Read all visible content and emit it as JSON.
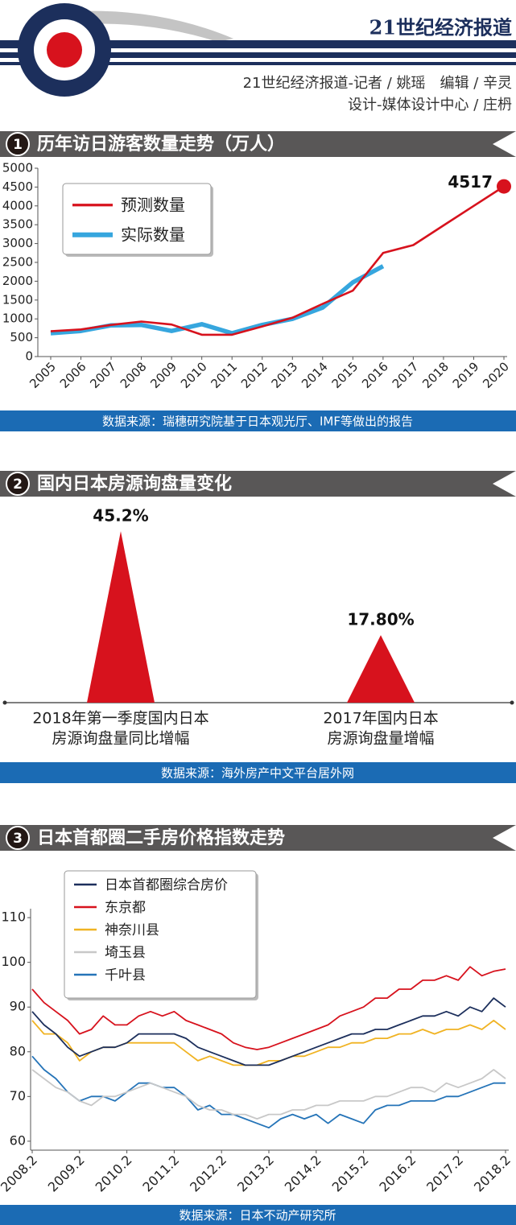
{
  "header": {
    "title": "21世纪经济报道",
    "credits": [
      "21世纪经济报道-记者 / 姚瑶　编辑 / 辛灵",
      "设计-媒体设计中心 / 庄枬"
    ]
  },
  "chart_data": [
    {
      "type": "line",
      "badge": "1",
      "title": "历年访日游客数量走势（万人）",
      "x": [
        2005,
        2006,
        2007,
        2008,
        2009,
        2010,
        2011,
        2012,
        2013,
        2014,
        2015,
        2016,
        2017,
        2018,
        2019,
        2020
      ],
      "xlim": [
        2005,
        2020
      ],
      "xticks": [
        2005,
        2006,
        2007,
        2008,
        2009,
        2010,
        2011,
        2012,
        2013,
        2014,
        2015,
        2016,
        2017,
        2018,
        2019,
        2020
      ],
      "ylim": [
        0,
        5000
      ],
      "yticks": [
        0,
        500,
        1000,
        1500,
        2000,
        2500,
        3000,
        3500,
        4000,
        4500,
        5000
      ],
      "legend": "upper left",
      "series": [
        {
          "name": "预测数量",
          "color": "#d7121d",
          "end_marker": true,
          "values": [
            670,
            720,
            840,
            930,
            850,
            580,
            580,
            800,
            1030,
            1400,
            1750,
            2750,
            2960,
            3480,
            4000,
            4517
          ]
        },
        {
          "name": "实际数量",
          "color": "#36a6de",
          "values": [
            620,
            680,
            830,
            840,
            680,
            860,
            620,
            840,
            1000,
            1300,
            1970,
            2400,
            null,
            null,
            null,
            null
          ]
        }
      ],
      "source": "数据来源：瑞穗研究院基于日本观光厅、IMF等做出的报告"
    },
    {
      "type": "triangle",
      "badge": "2",
      "title": "国内日本房源询盘量变化",
      "categories": [
        [
          "2018年第一季度国内日本",
          "房源询盘量同比增幅"
        ],
        [
          "2017年国内日本",
          "房源询盘量增幅"
        ]
      ],
      "values": [
        45.2,
        17.8
      ],
      "value_labels": [
        "45.2%",
        "17.80%"
      ],
      "color": "#d7121d",
      "source": "数据来源：海外房产中文平台居外网"
    },
    {
      "type": "line",
      "badge": "3",
      "title": "日本首都圈二手房价格指数走势",
      "x": [
        "2008.2",
        "2008.5",
        "2008.8",
        "2008.11",
        "2009.2",
        "2009.5",
        "2009.8",
        "2009.11",
        "2010.2",
        "2010.5",
        "2010.8",
        "2010.11",
        "2011.2",
        "2011.5",
        "2011.8",
        "2011.11",
        "2012.2",
        "2012.5",
        "2012.8",
        "2012.11",
        "2013.2",
        "2013.5",
        "2013.8",
        "2013.11",
        "2014.2",
        "2014.5",
        "2014.8",
        "2014.11",
        "2015.2",
        "2015.5",
        "2015.8",
        "2015.11",
        "2016.2",
        "2016.5",
        "2016.8",
        "2016.11",
        "2017.2",
        "2017.5",
        "2017.8",
        "2017.11",
        "2018.2"
      ],
      "xlim": [
        "2008.2",
        "2018.2"
      ],
      "xticks": [
        "2008.2",
        "2009.2",
        "2010.2",
        "2011.2",
        "2012.2",
        "2013.2",
        "2014.2",
        "2015.2",
        "2016.2",
        "2017.2",
        "2018.2"
      ],
      "ylim": [
        58,
        112
      ],
      "yticks": [
        60,
        70,
        80,
        90,
        100,
        110
      ],
      "legend": "upper left",
      "series": [
        {
          "name": "日本首都圈综合房价",
          "color": "#1c2f5c",
          "values": [
            89,
            86,
            84,
            81,
            79,
            80,
            81,
            81,
            82,
            84,
            84,
            84,
            84,
            83,
            81,
            80,
            79,
            78,
            77,
            77,
            77,
            78,
            79,
            80,
            81,
            82,
            83,
            84,
            84,
            85,
            85,
            86,
            87,
            88,
            88,
            89,
            88,
            90,
            89,
            92,
            90
          ]
        },
        {
          "name": "东京都",
          "color": "#d7121d",
          "values": [
            94,
            91,
            89,
            87,
            84,
            85,
            88,
            86,
            86,
            88,
            89,
            88,
            89,
            87,
            86,
            85,
            84,
            82,
            81,
            80.5,
            81,
            82,
            83,
            84,
            85,
            86,
            88,
            89,
            90,
            92,
            92,
            94,
            94,
            96,
            96,
            97,
            96,
            99,
            97,
            98,
            98.5
          ]
        },
        {
          "name": "神奈川县",
          "color": "#f0b323",
          "values": [
            87,
            84,
            84,
            82,
            78,
            80,
            81,
            81,
            82,
            82,
            82,
            82,
            82,
            80,
            78,
            79,
            78,
            77,
            77,
            77,
            78,
            78,
            79,
            79,
            80,
            81,
            81,
            82,
            82,
            83,
            83,
            84,
            84,
            85,
            84,
            85,
            85,
            86,
            85,
            87,
            85
          ]
        },
        {
          "name": "埼玉县",
          "color": "#c8c8c8",
          "values": [
            76,
            74,
            72,
            71,
            69,
            68,
            70,
            70,
            71,
            72,
            73,
            72,
            71,
            70,
            68,
            67,
            67,
            66,
            66,
            65,
            66,
            66,
            67,
            67,
            68,
            68,
            69,
            69,
            69,
            70,
            70,
            71,
            72,
            72,
            71,
            73,
            72,
            73,
            74,
            76,
            74
          ]
        },
        {
          "name": "千叶县",
          "color": "#2574b8",
          "values": [
            79,
            76,
            74,
            71,
            69,
            70,
            70,
            69,
            71,
            73,
            73,
            72,
            72,
            70,
            67,
            68,
            66,
            66,
            65,
            64,
            63,
            65,
            66,
            65,
            66,
            64,
            66,
            65,
            64,
            67,
            68,
            68,
            69,
            69,
            69,
            70,
            70,
            71,
            72,
            73,
            73
          ]
        }
      ],
      "source": "数据来源：日本不动产研究所"
    }
  ]
}
